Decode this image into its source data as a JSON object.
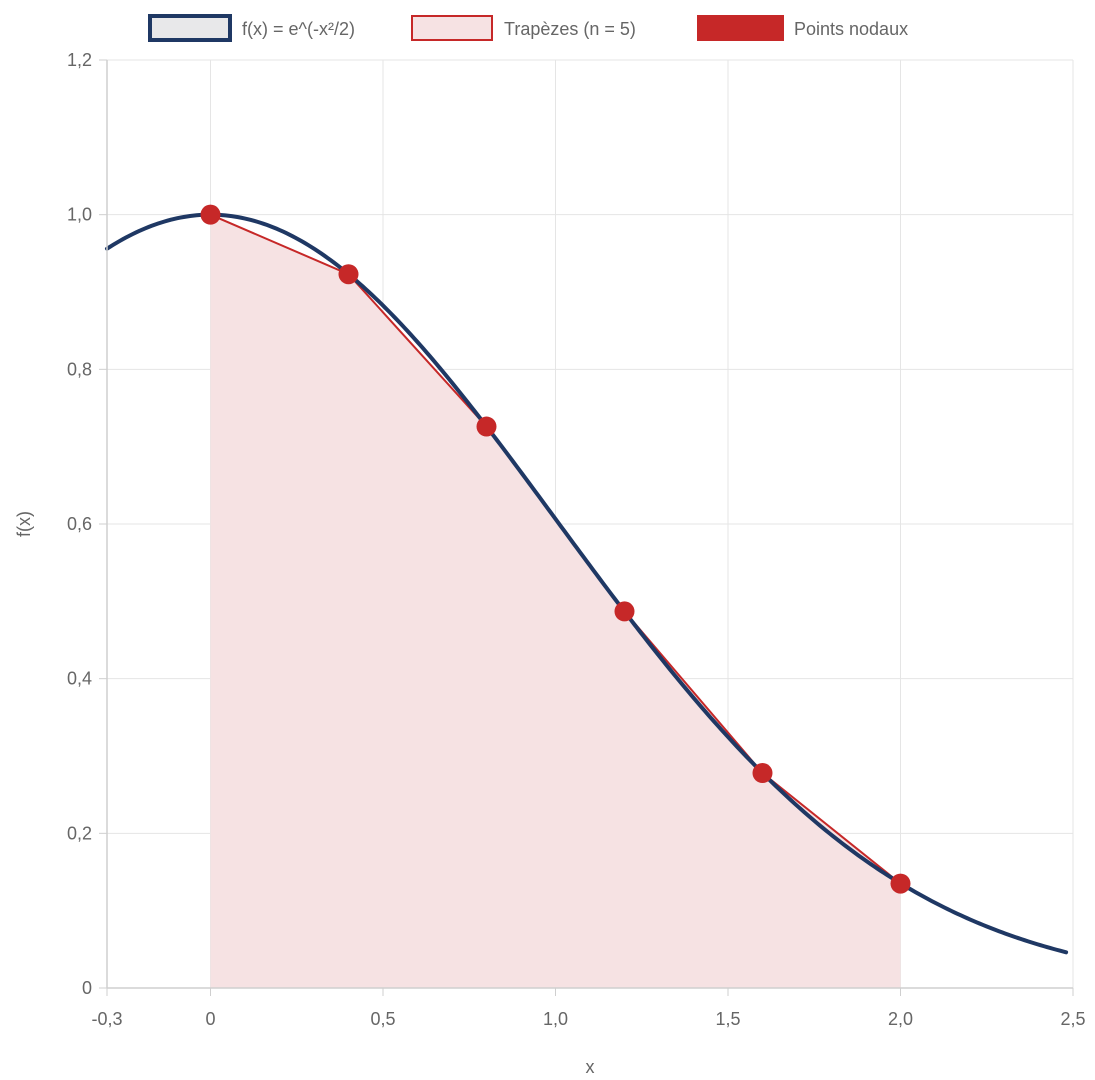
{
  "chart_data": {
    "type": "line",
    "xlabel": "x",
    "ylabel": "f(x)",
    "xlim": [
      -0.3,
      2.5
    ],
    "ylim": [
      0,
      1.2
    ],
    "x_ticks": [
      -0.3,
      0,
      0.5,
      1.0,
      1.5,
      2.0,
      2.5
    ],
    "x_tick_labels": [
      "-0,3",
      "0",
      "0,5",
      "1,0",
      "1,5",
      "2,0",
      "2,5"
    ],
    "y_ticks": [
      0,
      0.2,
      0.4,
      0.6,
      0.8,
      1.0,
      1.2
    ],
    "y_tick_labels": [
      "0",
      "0,2",
      "0,4",
      "0,6",
      "0,8",
      "1,0",
      "1,2"
    ],
    "grid": true,
    "legend_position": "top-center",
    "series": [
      {
        "name": "f(x) = e^(-x²/2)",
        "kind": "curve",
        "function": "exp(-x^2/2)",
        "x_range": [
          -0.3,
          2.48
        ],
        "color": "#1f3864"
      },
      {
        "name": "Trapèzes (n = 5)",
        "kind": "filled-polyline",
        "x": [
          0,
          0.4,
          0.8,
          1.2,
          1.6,
          2.0
        ],
        "y": [
          1.0,
          0.923,
          0.726,
          0.487,
          0.278,
          0.135
        ],
        "color": "#c62828",
        "fill": "#f6e2e3"
      },
      {
        "name": "Points nodaux",
        "kind": "points",
        "x": [
          0,
          0.4,
          0.8,
          1.2,
          1.6,
          2.0
        ],
        "y": [
          1.0,
          0.923,
          0.726,
          0.487,
          0.278,
          0.135
        ],
        "color": "#c62828"
      }
    ]
  }
}
